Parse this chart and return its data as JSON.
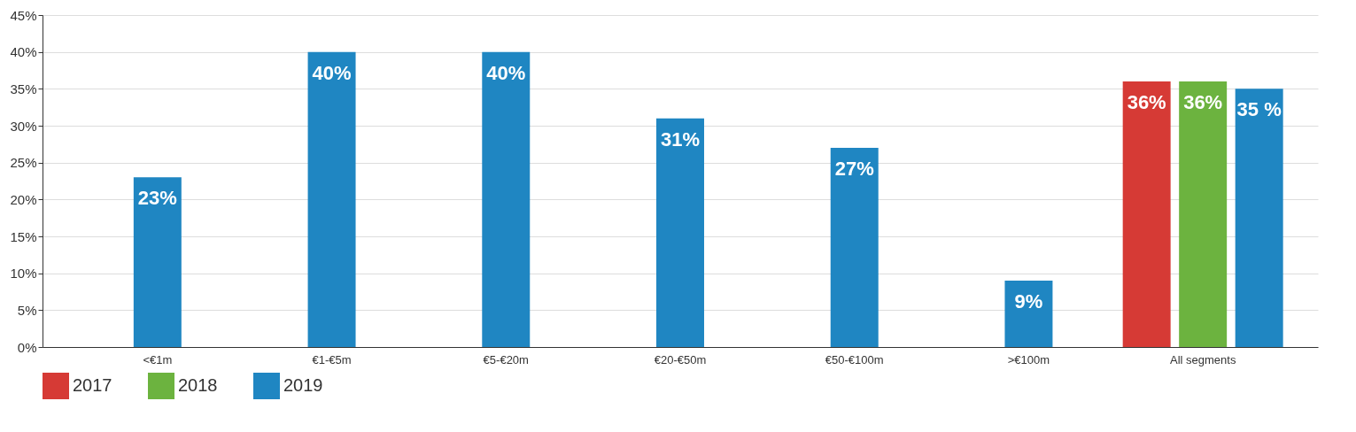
{
  "chart_data": {
    "type": "bar",
    "categories": [
      "<€1m",
      "€1-€5m",
      "€5-€20m",
      "€20-€50m",
      "€50-€100m",
      ">€100m",
      "All segments"
    ],
    "series": [
      {
        "name": "2017",
        "color": "#d63a35",
        "values": [
          null,
          null,
          null,
          null,
          null,
          null,
          36
        ],
        "value_labels": [
          null,
          null,
          null,
          null,
          null,
          null,
          "36%"
        ]
      },
      {
        "name": "2018",
        "color": "#6cb33f",
        "values": [
          null,
          null,
          null,
          null,
          null,
          null,
          36
        ],
        "value_labels": [
          null,
          null,
          null,
          null,
          null,
          null,
          "36%"
        ]
      },
      {
        "name": "2019",
        "color": "#1f86c2",
        "values": [
          23,
          40,
          40,
          31,
          27,
          9,
          35
        ],
        "value_labels": [
          "23%",
          "40%",
          "40%",
          "31%",
          "27%",
          "9%",
          "35 %"
        ]
      }
    ],
    "ylim": [
      0,
      45
    ],
    "yticks": [
      {
        "value": 0,
        "label": "0%"
      },
      {
        "value": 5,
        "label": "5%"
      },
      {
        "value": 10,
        "label": "10%"
      },
      {
        "value": 15,
        "label": "15%"
      },
      {
        "value": 20,
        "label": "20%"
      },
      {
        "value": 25,
        "label": "25%"
      },
      {
        "value": 30,
        "label": "30%"
      },
      {
        "value": 35,
        "label": "35%"
      },
      {
        "value": 40,
        "label": "40%"
      },
      {
        "value": 45,
        "label": "45%"
      }
    ],
    "grid": "y",
    "legend": "bottom"
  }
}
